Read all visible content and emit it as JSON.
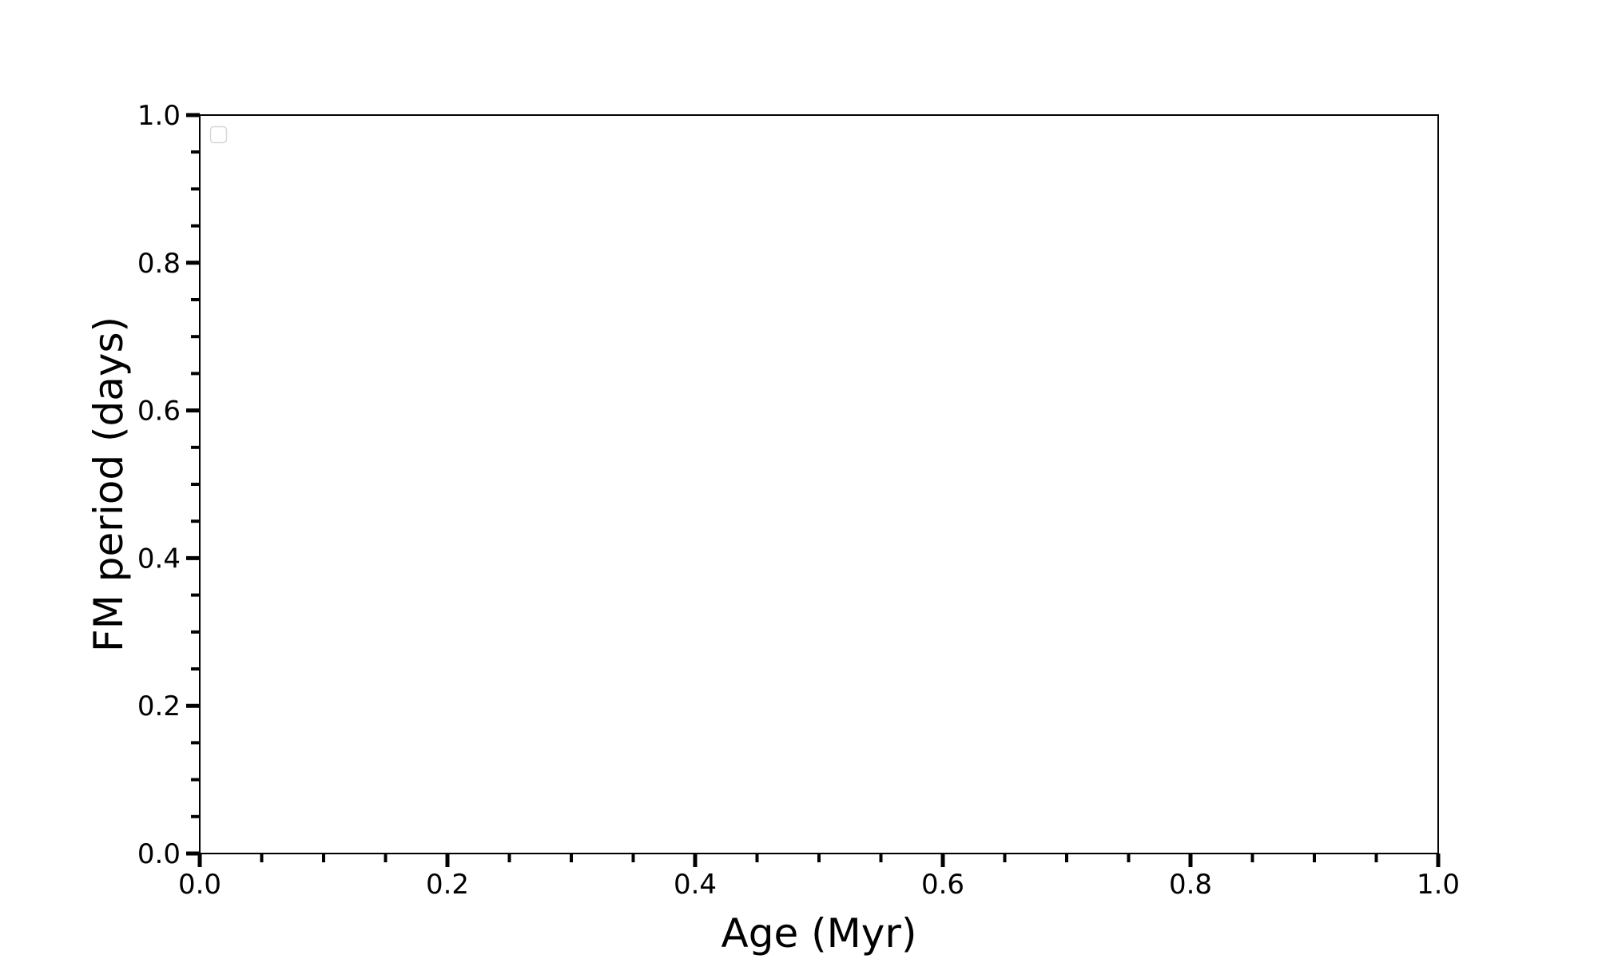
{
  "chart_data": {
    "type": "scatter",
    "title": "",
    "xlabel": "Age (Myr)",
    "ylabel": "FM period (days)",
    "xlim": [
      0.0,
      1.0
    ],
    "ylim": [
      0.0,
      1.0
    ],
    "xticks": [
      "0.0",
      "0.2",
      "0.4",
      "0.6",
      "0.8",
      "1.0"
    ],
    "yticks": [
      "0.0",
      "0.2",
      "0.4",
      "0.6",
      "0.8",
      "1.0"
    ],
    "x_minor_step": 0.05,
    "y_minor_step": 0.05,
    "grid": false,
    "legend": {
      "placement": "upper-left",
      "entries": []
    },
    "series": []
  }
}
